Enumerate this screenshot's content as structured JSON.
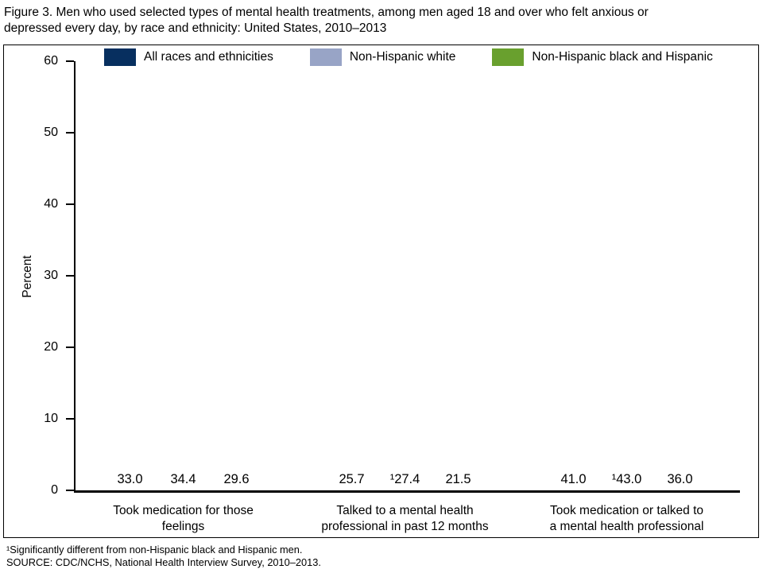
{
  "figure": {
    "title": "Figure 3. Men who used selected types of mental health treatments, among men aged 18 and over who felt anxious or\ndepressed every day, by race and ethnicity: United States, 2010–2013"
  },
  "chart_data": {
    "type": "bar",
    "title": "Men who used selected types of mental health treatments, among men aged 18 and over who felt anxious or depressed every day, by race and ethnicity: United States, 2010–2013",
    "xlabel": "",
    "ylabel": "Percent",
    "ylim": [
      0,
      60
    ],
    "yticks": [
      0,
      10,
      20,
      30,
      40,
      50,
      60
    ],
    "grid": false,
    "legend_position": "top",
    "categories": [
      "Took medication for those\nfeelings",
      "Talked to a mental health\nprofessional in past 12 months",
      "Took medication or talked to\na mental health professional"
    ],
    "series": [
      {
        "name": "All races and ethnicities",
        "color": "#072f5f",
        "values": [
          33.0,
          25.7,
          41.0
        ],
        "labels": [
          "33.0",
          "25.7",
          "41.0"
        ]
      },
      {
        "name": "Non-Hispanic white",
        "color": "#98a4c6",
        "values": [
          34.4,
          27.4,
          43.0
        ],
        "labels": [
          "34.4",
          "¹27.4",
          "¹43.0"
        ]
      },
      {
        "name": "Non-Hispanic black and Hispanic",
        "color": "#69a02e",
        "values": [
          29.6,
          21.5,
          36.0
        ],
        "labels": [
          "29.6",
          "21.5",
          "36.0"
        ]
      }
    ]
  },
  "footnotes": {
    "note": "¹Significantly different from non-Hispanic black and Hispanic men.",
    "source": "SOURCE: CDC/NCHS, National Health Interview Survey, 2010–2013."
  }
}
